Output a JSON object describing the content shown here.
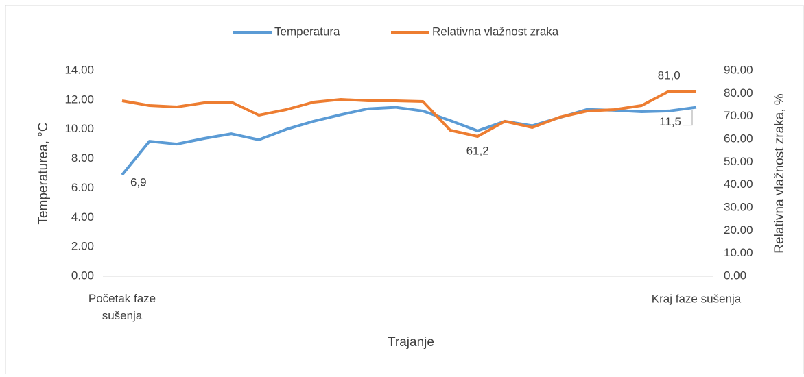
{
  "chart_data": {
    "type": "line",
    "x_label": "Trajanje",
    "y_label": "Temperaturea, °C",
    "y2_label": "Relativna vlažnost zraka, %",
    "categories": [
      "Početak faze sušenja",
      null,
      null,
      null,
      null,
      null,
      null,
      null,
      null,
      null,
      null,
      null,
      null,
      null,
      null,
      null,
      null,
      null,
      null,
      null,
      null,
      "Kraj faze sušenja"
    ],
    "series": [
      {
        "name": "Temperatura",
        "color": "#5b9bd5",
        "values": [
          6.9,
          9.19,
          9.0,
          9.38,
          9.7,
          9.29,
          10.0,
          10.55,
          11.0,
          11.4,
          11.5,
          11.25,
          10.6,
          9.9,
          10.55,
          10.25,
          10.8,
          11.35,
          11.3,
          11.2,
          11.25,
          11.5
        ],
        "value_labels": [
          "6,9",
          null,
          null,
          null,
          null,
          null,
          null,
          null,
          null,
          null,
          null,
          null,
          null,
          null,
          null,
          null,
          null,
          null,
          null,
          null,
          null,
          "11,5"
        ]
      },
      {
        "name": "Relativna vlažnost zraka",
        "color": "#ed7d31",
        "axis": "y2",
        "values": [
          76.8,
          74.7,
          74.1,
          75.9,
          76.2,
          70.5,
          72.9,
          76.2,
          77.4,
          76.8,
          76.8,
          76.5,
          63.9,
          61.2,
          67.8,
          65.1,
          69.6,
          72.3,
          72.9,
          74.7,
          81.0,
          80.7
        ],
        "value_labels": [
          null,
          null,
          null,
          null,
          null,
          null,
          null,
          null,
          null,
          null,
          null,
          null,
          null,
          "61,2",
          null,
          null,
          null,
          null,
          null,
          null,
          "81,0",
          null
        ]
      }
    ],
    "ylim": [
      0,
      14
    ],
    "yticks": [
      {
        "value": 0,
        "label": "0.00"
      },
      {
        "value": 2,
        "label": "2.00"
      },
      {
        "value": 4,
        "label": "4.00"
      },
      {
        "value": 6,
        "label": "6.00"
      },
      {
        "value": 8,
        "label": "8.00"
      },
      {
        "value": 10,
        "label": "10.00"
      },
      {
        "value": 12,
        "label": "12.00"
      },
      {
        "value": 14,
        "label": "14.00"
      }
    ],
    "y2lim": [
      0,
      90
    ],
    "y2ticks": [
      {
        "value": 0,
        "label": "0.00"
      },
      {
        "value": 10,
        "label": "10.00"
      },
      {
        "value": 20,
        "label": "20.00"
      },
      {
        "value": 30,
        "label": "30.00"
      },
      {
        "value": 40,
        "label": "40.00"
      },
      {
        "value": 50,
        "label": "50.00"
      },
      {
        "value": 60,
        "label": "60.00"
      },
      {
        "value": 70,
        "label": "70.00"
      },
      {
        "value": 80,
        "label": "80.00"
      },
      {
        "value": 90,
        "label": "90.00"
      }
    ],
    "grid": false,
    "legend": "top"
  }
}
